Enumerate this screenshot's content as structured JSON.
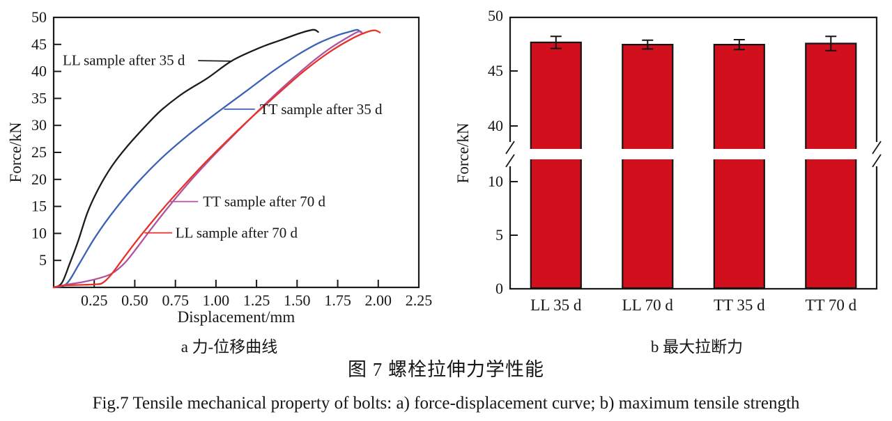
{
  "figure": {
    "caption_a": "a 力-位移曲线",
    "caption_b": "b 最大拉断力",
    "caption_cn": "图 7  螺栓拉伸力学性能",
    "caption_en": "Fig.7 Tensile mechanical property of bolts: a) force-displacement curve; b) maximum tensile strength"
  },
  "chart_data": [
    {
      "id": "force-displacement-curve",
      "type": "line",
      "xlabel": "Displacement/mm",
      "ylabel": "Force/kN",
      "xlim": [
        0,
        2.25
      ],
      "ylim": [
        0,
        50
      ],
      "xticks": [
        "0.25",
        "0.50",
        "0.75",
        "1.00",
        "1.25",
        "1.50",
        "1.75",
        "2.00",
        "2.25"
      ],
      "yticks": [
        5,
        10,
        15,
        20,
        25,
        30,
        35,
        40,
        45,
        50
      ],
      "grid": false,
      "legend_position": "inline-annotations",
      "axis_color": "#1a1a1a",
      "series": [
        {
          "name": "LL sample after 35 d",
          "color": "#1c1c1c",
          "points": [
            [
              0,
              0
            ],
            [
              0.05,
              0.8
            ],
            [
              0.1,
              4.5
            ],
            [
              0.15,
              8.5
            ],
            [
              0.21,
              14
            ],
            [
              0.28,
              18.5
            ],
            [
              0.36,
              22.5
            ],
            [
              0.45,
              26
            ],
            [
              0.57,
              30
            ],
            [
              0.67,
              33
            ],
            [
              0.8,
              36
            ],
            [
              0.95,
              38.8
            ],
            [
              1.1,
              42
            ],
            [
              1.28,
              44.5
            ],
            [
              1.4,
              45.8
            ],
            [
              1.52,
              47.1
            ],
            [
              1.6,
              47.7
            ],
            [
              1.63,
              47.3
            ]
          ]
        },
        {
          "name": "TT sample after 35 d",
          "color": "#3a62b5",
          "points": [
            [
              0,
              0
            ],
            [
              0.08,
              0.7
            ],
            [
              0.16,
              4.5
            ],
            [
              0.26,
              9.5
            ],
            [
              0.38,
              14.5
            ],
            [
              0.52,
              19.5
            ],
            [
              0.66,
              23.8
            ],
            [
              0.82,
              28
            ],
            [
              1.0,
              32.2
            ],
            [
              1.18,
              36.2
            ],
            [
              1.35,
              40
            ],
            [
              1.5,
              43
            ],
            [
              1.63,
              45.2
            ],
            [
              1.75,
              46.7
            ],
            [
              1.83,
              47.4
            ],
            [
              1.87,
              47.7
            ],
            [
              1.89,
              47.3
            ]
          ]
        },
        {
          "name": "TT sample after 70 d",
          "color": "#b0539f",
          "points": [
            [
              0,
              0
            ],
            [
              0.08,
              0.5
            ],
            [
              0.18,
              1.0
            ],
            [
              0.28,
              1.7
            ],
            [
              0.36,
              2.6
            ],
            [
              0.44,
              4.6
            ],
            [
              0.52,
              7.6
            ],
            [
              0.6,
              10.8
            ],
            [
              0.71,
              15
            ],
            [
              0.83,
              19.3
            ],
            [
              0.96,
              23.6
            ],
            [
              1.1,
              27.9
            ],
            [
              1.25,
              32.4
            ],
            [
              1.4,
              36.7
            ],
            [
              1.55,
              40.7
            ],
            [
              1.69,
              44
            ],
            [
              1.8,
              46.1
            ],
            [
              1.88,
              47.4
            ],
            [
              1.9,
              47.1
            ]
          ]
        },
        {
          "name": "LL sample after 70 d",
          "color": "#e83126",
          "points": [
            [
              0,
              0
            ],
            [
              0.06,
              0.35
            ],
            [
              0.15,
              0.45
            ],
            [
              0.25,
              0.55
            ],
            [
              0.3,
              0.8
            ],
            [
              0.35,
              2.2
            ],
            [
              0.42,
              5
            ],
            [
              0.5,
              8.2
            ],
            [
              0.58,
              11.2
            ],
            [
              0.68,
              14.8
            ],
            [
              0.8,
              18.8
            ],
            [
              0.93,
              23
            ],
            [
              1.07,
              27.2
            ],
            [
              1.22,
              31.5
            ],
            [
              1.38,
              35.8
            ],
            [
              1.54,
              40
            ],
            [
              1.7,
              43.6
            ],
            [
              1.84,
              46.1
            ],
            [
              1.93,
              47.3
            ],
            [
              1.98,
              47.6
            ],
            [
              2.01,
              47.2
            ]
          ]
        }
      ],
      "annotations": [
        {
          "text": "LL sample after 35 d",
          "color": "#1c1c1c",
          "text_at": [
            0.056,
            42.1
          ],
          "leader": [
            [
              0.89,
              42.0
            ],
            [
              1.1,
              41.9
            ]
          ]
        },
        {
          "text": "TT sample after 35 d",
          "color": "#3a62b5",
          "text_at": [
            1.27,
            33.0
          ],
          "leader": [
            [
              1.05,
              33.0
            ],
            [
              1.24,
              33.0
            ]
          ]
        },
        {
          "text": "TT sample after 70 d",
          "color": "#b0539f",
          "text_at": [
            0.92,
            15.9
          ],
          "leader": [
            [
              0.71,
              15.9
            ],
            [
              0.89,
              15.9
            ]
          ]
        },
        {
          "text": "LL sample after 70 d",
          "color": "#e83126",
          "text_at": [
            0.75,
            10.1
          ],
          "leader": [
            [
              0.56,
              10.1
            ],
            [
              0.73,
              10.1
            ]
          ]
        }
      ]
    },
    {
      "id": "maximum-tensile-strength",
      "type": "bar",
      "categories": [
        "LL 35 d",
        "LL 70 d",
        "TT 35 d",
        "TT 70 d"
      ],
      "values": [
        47.6,
        47.4,
        47.4,
        47.5
      ],
      "errors": [
        0.55,
        0.4,
        0.45,
        0.65
      ],
      "bar_color": "#d20f1c",
      "bar_outline": "#141414",
      "ylabel": "Force/kN",
      "axis_break": true,
      "yticks_lower": [
        0,
        5,
        10
      ],
      "yticks_upper": [
        40,
        45,
        50
      ],
      "ylim_lower": [
        0,
        12
      ],
      "ylim_upper": [
        38,
        50
      ],
      "grid": false,
      "axis_color": "#1a1a1a"
    }
  ]
}
